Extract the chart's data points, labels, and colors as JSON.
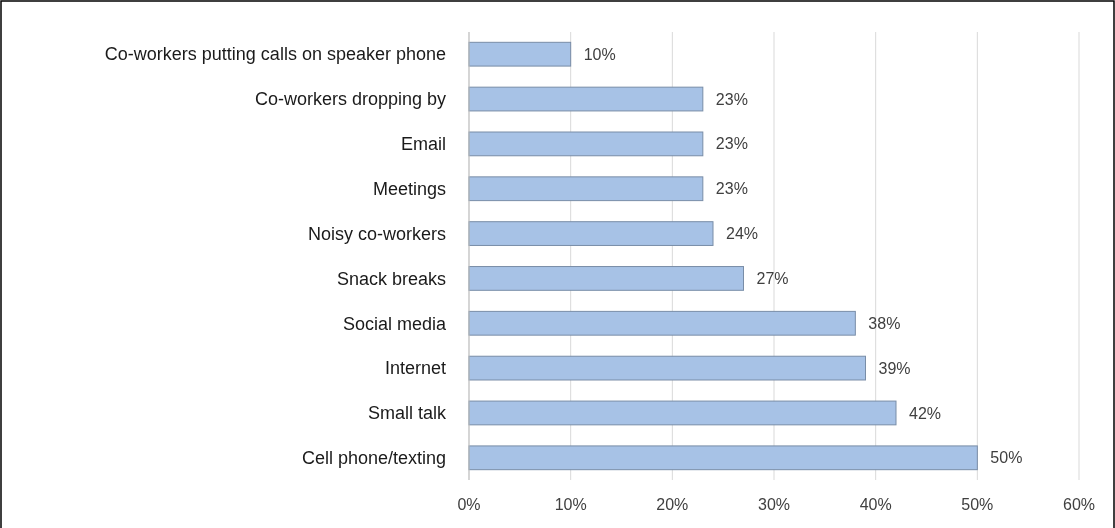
{
  "chart_data": {
    "type": "bar",
    "orientation": "horizontal",
    "categories": [
      "Co-workers putting calls on speaker phone",
      "Co-workers dropping by",
      "Email",
      "Meetings",
      "Noisy co-workers",
      "Snack breaks",
      "Social media",
      "Internet",
      "Small talk",
      "Cell phone/texting"
    ],
    "values": [
      10,
      23,
      23,
      23,
      24,
      27,
      38,
      39,
      42,
      50
    ],
    "value_labels": [
      "10%",
      "23%",
      "23%",
      "23%",
      "24%",
      "27%",
      "38%",
      "39%",
      "42%",
      "50%"
    ],
    "color": "#a7c2e6",
    "xlim": [
      0,
      60
    ],
    "xticks": [
      {
        "value": 0,
        "label": "0%"
      },
      {
        "value": 10,
        "label": "10%"
      },
      {
        "value": 20,
        "label": "20%"
      },
      {
        "value": 30,
        "label": "30%"
      },
      {
        "value": 40,
        "label": "40%"
      },
      {
        "value": 50,
        "label": "50%"
      },
      {
        "value": 60,
        "label": "60%"
      }
    ],
    "grid": "x"
  }
}
